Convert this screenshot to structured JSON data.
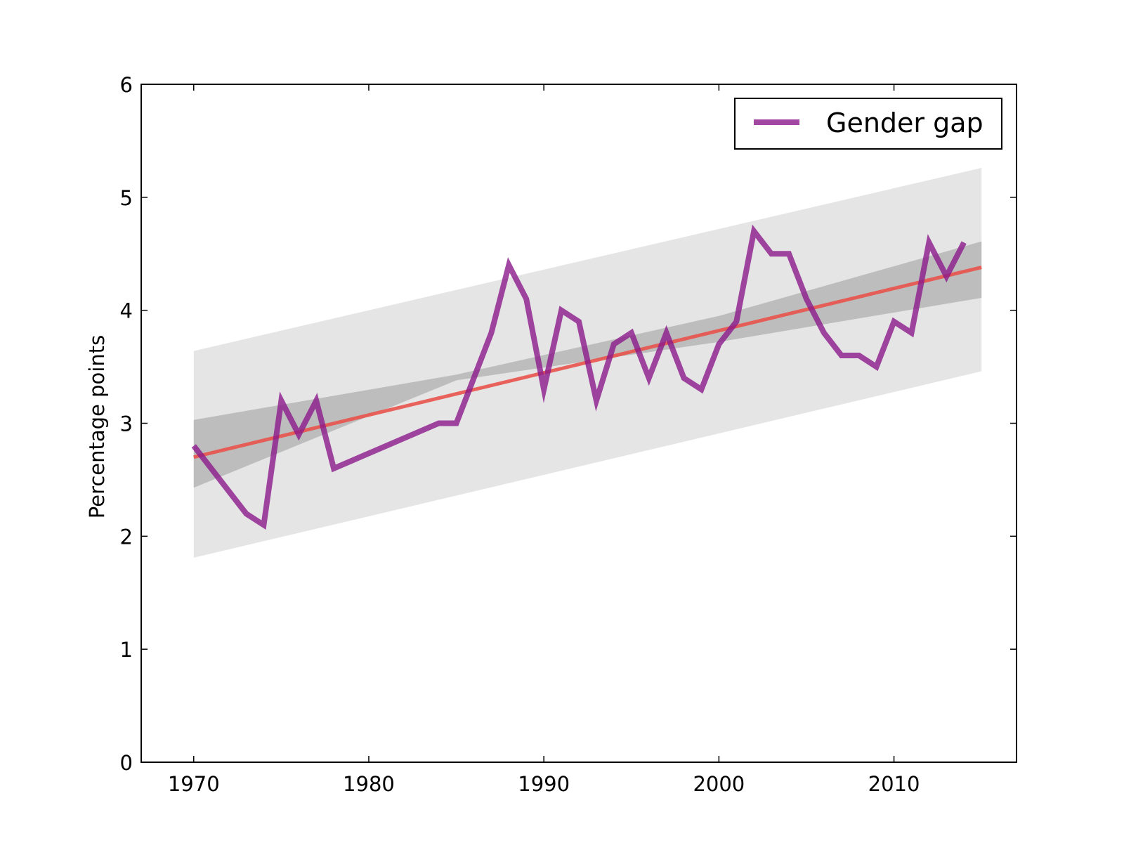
{
  "chart_data": {
    "type": "line",
    "title": "",
    "xlabel": "",
    "ylabel": "Percentage points",
    "xlim": [
      1967,
      2017
    ],
    "ylim": [
      0,
      6
    ],
    "x_ticks": [
      1970,
      1980,
      1990,
      2000,
      2010
    ],
    "y_ticks": [
      0,
      1,
      2,
      3,
      4,
      5,
      6
    ],
    "grid": false,
    "legend": {
      "position": "top-right",
      "entries": [
        "Gender gap"
      ]
    },
    "series": [
      {
        "name": "Gender gap",
        "color": "#8b1a8b",
        "x": [
          1970,
          1973,
          1974,
          1975,
          1976,
          1977,
          1978,
          1984,
          1985,
          1986,
          1987,
          1988,
          1989,
          1990,
          1991,
          1992,
          1993,
          1994,
          1995,
          1996,
          1997,
          1998,
          1999,
          2000,
          2001,
          2002,
          2003,
          2004,
          2005,
          2006,
          2007,
          2008,
          2009,
          2010,
          2011,
          2012,
          2013,
          2014
        ],
        "y": [
          2.8,
          2.2,
          2.1,
          3.2,
          2.9,
          3.2,
          2.6,
          3.0,
          3.0,
          3.4,
          3.8,
          4.4,
          4.1,
          3.3,
          4.0,
          3.9,
          3.2,
          3.7,
          3.8,
          3.4,
          3.8,
          3.4,
          3.3,
          3.7,
          3.9,
          4.7,
          4.5,
          4.5,
          4.1,
          3.8,
          3.6,
          3.6,
          3.5,
          3.9,
          3.8,
          4.6,
          4.3,
          4.6
        ]
      }
    ],
    "trend_line": {
      "color": "#e8524a",
      "x": [
        1970,
        2015
      ],
      "y": [
        2.7,
        4.38
      ]
    },
    "confidence_band": {
      "color": "#bdbdbd",
      "x": [
        1970,
        1985,
        2000,
        2015
      ],
      "lower": [
        2.43,
        3.38,
        3.72,
        4.11
      ],
      "upper": [
        3.03,
        3.43,
        3.95,
        4.61
      ]
    },
    "prediction_band": {
      "color": "#e5e5e5",
      "x": [
        1970,
        2015
      ],
      "lower": [
        1.81,
        3.46
      ],
      "upper": [
        3.64,
        5.26
      ]
    }
  }
}
